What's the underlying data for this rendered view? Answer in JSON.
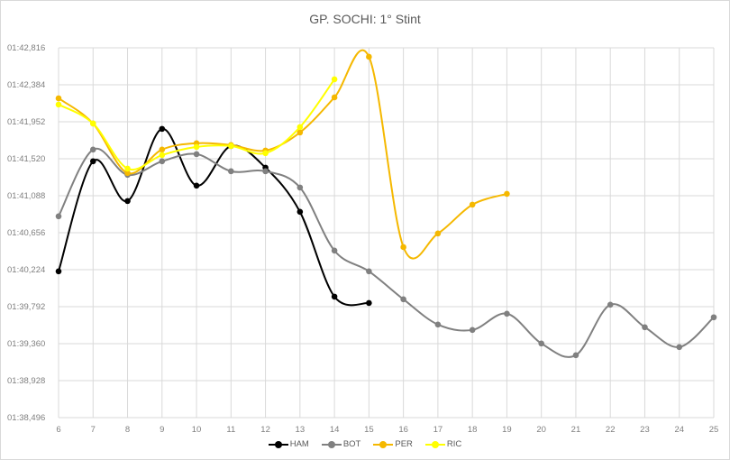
{
  "chart_data": {
    "type": "line",
    "title": "GP. SOCHI: 1° Stint",
    "xlabel": "",
    "ylabel": "",
    "x": [
      6,
      7,
      8,
      9,
      10,
      11,
      12,
      13,
      14,
      15,
      16,
      17,
      18,
      19,
      20,
      21,
      22,
      23,
      24,
      25
    ],
    "y_ticks": [
      "01:38,496",
      "01:38,928",
      "01:39,360",
      "01:39,792",
      "01:40,224",
      "01:40,656",
      "01:41,088",
      "01:41,520",
      "01:41,952",
      "01:42,384",
      "01:42,816"
    ],
    "y_tick_values_ms": [
      98496,
      98928,
      99360,
      99792,
      100224,
      100656,
      101088,
      101520,
      101952,
      102384,
      102816
    ],
    "ylim_ms": [
      98496,
      102816
    ],
    "grid": true,
    "smoothed": true,
    "legend_position": "bottom",
    "series": [
      {
        "name": "HAM",
        "color": "#000000",
        "values_ms": [
          100205,
          101490,
          101026,
          101869,
          101206,
          101669,
          101416,
          100900,
          99909,
          99835,
          null,
          null,
          null,
          null,
          null,
          null,
          null,
          null,
          null,
          null
        ]
      },
      {
        "name": "BOT",
        "color": "#808080",
        "values_ms": [
          100848,
          101627,
          101332,
          101490,
          101574,
          101374,
          101374,
          101184,
          100447,
          100205,
          99878,
          99583,
          99520,
          99710,
          99362,
          99225,
          99815,
          99552,
          99320,
          99668
        ]
      },
      {
        "name": "PER",
        "color": "#f5b800",
        "values_ms": [
          102226,
          101932,
          101353,
          101627,
          101701,
          101680,
          101616,
          101827,
          102237,
          102711,
          100488,
          100647,
          100984,
          101110,
          null,
          null,
          null,
          null,
          null,
          null
        ]
      },
      {
        "name": "RIC",
        "color": "#ffff00",
        "values_ms": [
          102153,
          101932,
          101405,
          101563,
          101658,
          101669,
          101585,
          101890,
          102448,
          null,
          null,
          null,
          null,
          null,
          null,
          null,
          null,
          null,
          null,
          null
        ]
      }
    ]
  },
  "legend": [
    {
      "label": "HAM",
      "color": "#000000"
    },
    {
      "label": "BOT",
      "color": "#808080"
    },
    {
      "label": "PER",
      "color": "#f5b800"
    },
    {
      "label": "RIC",
      "color": "#ffff00"
    }
  ]
}
